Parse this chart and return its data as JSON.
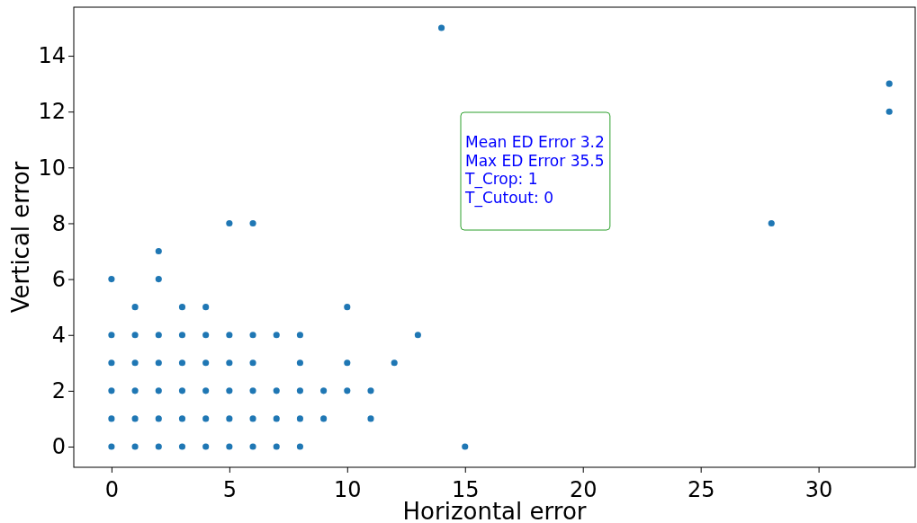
{
  "chart_data": {
    "type": "scatter",
    "xlabel": "Horizontal error",
    "ylabel": "Vertical error",
    "xlim": [
      -1.6,
      34.1
    ],
    "ylim": [
      -0.74,
      15.74
    ],
    "xticks": [
      0,
      5,
      10,
      15,
      20,
      25,
      30
    ],
    "yticks": [
      0,
      2,
      4,
      6,
      8,
      10,
      12,
      14
    ],
    "grid": false,
    "marker": "circle",
    "annotations": [
      "Mean ED Error 3.2\nMax ED Error 35.5\nT_Crop: 1\nT_Cutout: 0"
    ],
    "series": [
      {
        "color": "#1f77b4",
        "x": [
          0,
          1,
          2,
          3,
          4,
          5,
          6,
          7,
          8,
          15,
          0,
          1,
          2,
          3,
          4,
          5,
          6,
          7,
          8,
          9,
          11,
          0,
          1,
          2,
          3,
          4,
          5,
          6,
          7,
          8,
          9,
          10,
          11,
          0,
          1,
          2,
          3,
          4,
          5,
          6,
          8,
          10,
          12,
          0,
          1,
          2,
          3,
          4,
          5,
          6,
          7,
          8,
          13,
          1,
          3,
          4,
          10,
          0,
          2,
          2,
          5,
          6,
          28,
          33,
          33,
          14
        ],
        "values": [
          0,
          0,
          0,
          0,
          0,
          0,
          0,
          0,
          0,
          0,
          1,
          1,
          1,
          1,
          1,
          1,
          1,
          1,
          1,
          1,
          1,
          2,
          2,
          2,
          2,
          2,
          2,
          2,
          2,
          2,
          2,
          2,
          2,
          3,
          3,
          3,
          3,
          3,
          3,
          3,
          3,
          3,
          3,
          4,
          4,
          4,
          4,
          4,
          4,
          4,
          4,
          4,
          4,
          5,
          5,
          5,
          5,
          6,
          6,
          7,
          8,
          8,
          8,
          12,
          13,
          15
        ]
      }
    ]
  }
}
